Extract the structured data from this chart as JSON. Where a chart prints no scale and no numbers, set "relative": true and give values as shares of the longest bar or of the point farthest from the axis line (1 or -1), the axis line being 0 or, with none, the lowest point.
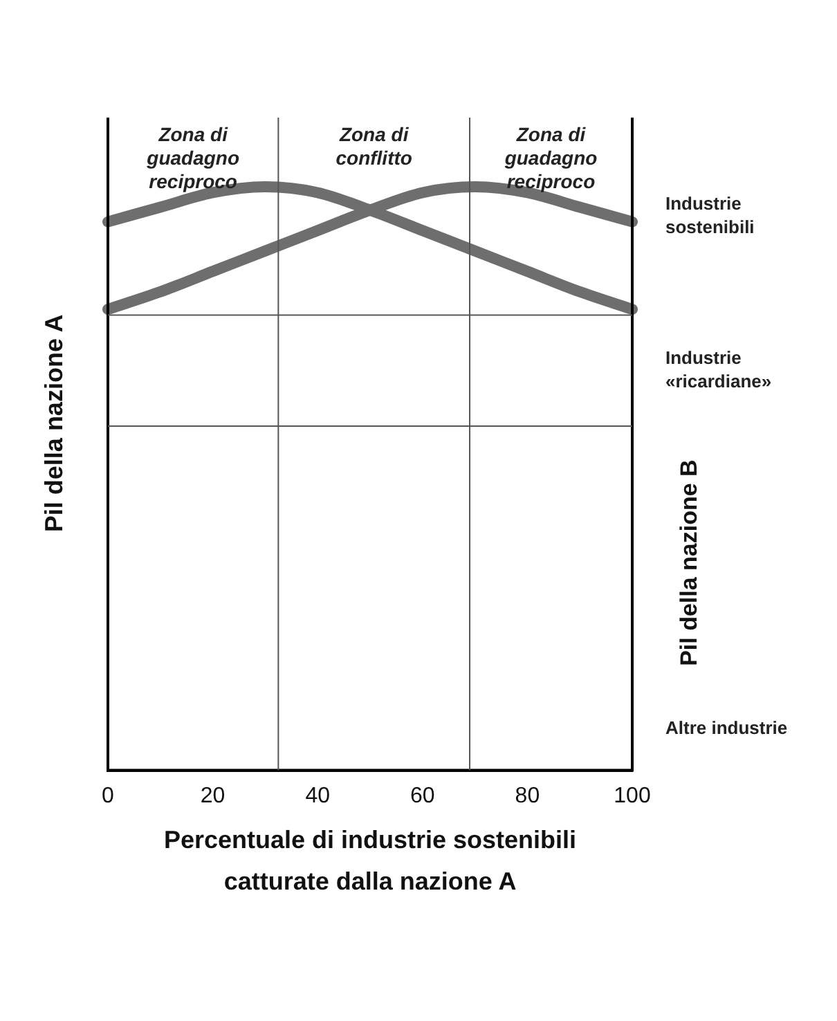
{
  "chart_data": {
    "type": "line",
    "relative": true,
    "xlabel": "Percentuale di industrie sostenibili catturate dalla nazione A",
    "ylabel": "Pil della nazione A",
    "y2label": "Pil della nazione B",
    "x": [
      0,
      10,
      20,
      30,
      40,
      50,
      60,
      70,
      80,
      90,
      100
    ],
    "series": [
      {
        "color": "#6e6e6e",
        "values": [
          0.94,
          0.965,
          0.99,
          1,
          0.99,
          0.96,
          0.925,
          0.89,
          0.855,
          0.82,
          0.79
        ]
      },
      {
        "color": "#6e6e6e",
        "values": [
          0.79,
          0.82,
          0.855,
          0.89,
          0.925,
          0.96,
          0.99,
          1,
          0.99,
          0.965,
          0.94
        ]
      }
    ],
    "xlim": [
      0,
      100
    ],
    "xticks": [
      0,
      20,
      40,
      60,
      80,
      100
    ],
    "ref_lines": [
      {
        "axis": "x",
        "value": 32.5
      },
      {
        "axis": "x",
        "value": 69
      },
      {
        "axis": "y",
        "value": 0.78
      },
      {
        "axis": "y",
        "value": 0.59
      }
    ],
    "annotations": [
      "Zona di guadagno reciproco",
      "Zona di conflitto",
      "Zona di guadagno reciproco",
      "Industrie sostenibili",
      "Industrie «ricardiane»",
      "Altre industrie"
    ],
    "marker": "none",
    "grid": false,
    "legend": false
  }
}
